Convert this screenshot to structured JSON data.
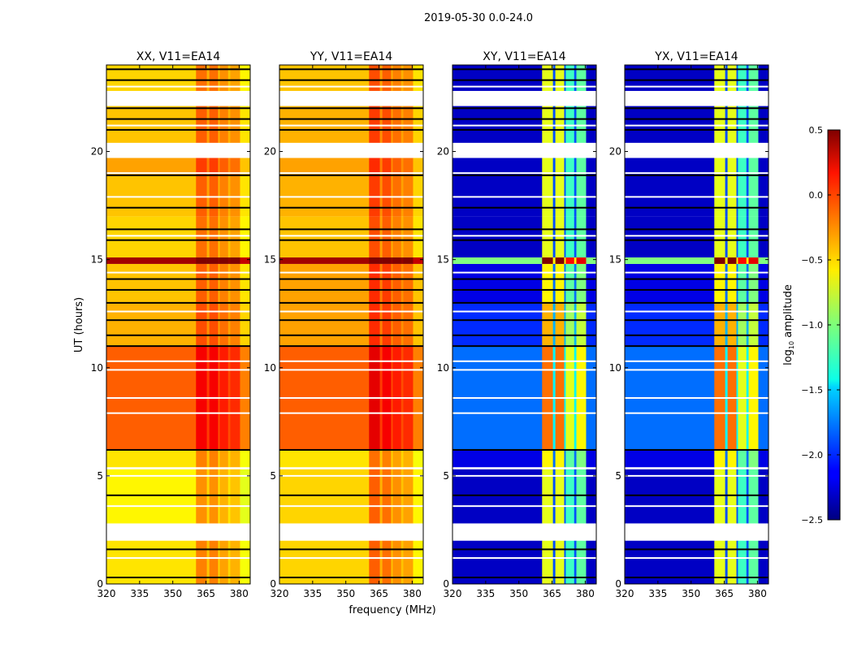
{
  "chart_data": {
    "type": "heatmap",
    "title": "2019-05-30 0.0-24.0",
    "xlabel": "frequency (MHz)",
    "ylabel": "UT (hours)",
    "xlim": [
      320,
      385
    ],
    "ylim": [
      0,
      24
    ],
    "xticks": [
      320,
      335,
      350,
      365,
      380
    ],
    "yticks": [
      0,
      5,
      10,
      15,
      20
    ],
    "colorbar": {
      "label": "log10 amplitude",
      "range": [
        -2.5,
        0.5
      ],
      "ticks": [
        "0.5",
        "0.0",
        "−0.5",
        "−1.0",
        "−1.5",
        "−2.0",
        "−2.5"
      ],
      "tick_values": [
        0.5,
        0.0,
        -0.5,
        -1.0,
        -1.5,
        -2.0,
        -2.5
      ],
      "colormap": "jet"
    },
    "time_segments_hours": [
      [
        0,
        2.0
      ],
      [
        2.8,
        5.3
      ],
      [
        5.4,
        6.2
      ],
      [
        6.2,
        11.0
      ],
      [
        11.0,
        13.0
      ],
      [
        13.0,
        14.8
      ],
      [
        14.8,
        15.1
      ],
      [
        15.1,
        17.0
      ],
      [
        17.0,
        18.9
      ],
      [
        18.9,
        19.7
      ],
      [
        20.4,
        22.1
      ],
      [
        22.8,
        24.0
      ]
    ],
    "frequency_bands_mhz": [
      [
        320,
        360.5
      ],
      [
        360.5,
        365.4
      ],
      [
        365.4,
        366.5
      ],
      [
        366.5,
        370.5
      ],
      [
        370.5,
        371.2
      ],
      [
        371.2,
        375
      ],
      [
        375,
        376
      ],
      [
        376,
        380.4
      ],
      [
        380.4,
        385
      ]
    ],
    "flagged_black_lines_hours": [
      0.3,
      1.6,
      4.1,
      6.2,
      11.0,
      11.5,
      12.2,
      13.0,
      13.6,
      14.1,
      15.9,
      16.4,
      17.4,
      18.9,
      21.0,
      21.5,
      22.0,
      23.3,
      23.8
    ],
    "flagged_white_lines_hours": [
      1.2,
      3.6,
      5.0,
      7.9,
      8.6,
      9.9,
      10.3,
      12.6,
      14.4,
      16.1,
      17.9,
      19.0,
      21.2,
      23.0
    ],
    "panels": [
      {
        "title": "XX, V11=EA14",
        "segment_levels": [
          -0.55,
          -0.6,
          -0.55,
          -0.15,
          -0.4,
          -0.45,
          0.4,
          -0.5,
          -0.45,
          -0.35,
          -0.45,
          -0.5
        ],
        "band_offsets": [
          0,
          0.3,
          0.1,
          0.3,
          0.05,
          0.2,
          0.05,
          0.15,
          -0.1
        ]
      },
      {
        "title": "YY, V11=EA14",
        "segment_levels": [
          -0.5,
          -0.5,
          -0.55,
          -0.15,
          -0.35,
          -0.35,
          0.4,
          -0.45,
          -0.4,
          -0.35,
          -0.4,
          -0.45
        ],
        "band_offsets": [
          0,
          0.35,
          0.1,
          0.3,
          0.05,
          0.2,
          0.05,
          0.15,
          -0.1
        ]
      },
      {
        "title": "XY, V11=EA14",
        "segment_levels": [
          -2.3,
          -2.3,
          -2.2,
          -1.8,
          -2.0,
          -2.2,
          -1.0,
          -2.3,
          -2.3,
          -2.3,
          -2.3,
          -2.3
        ],
        "band_offsets": [
          0,
          1.6,
          0.4,
          1.6,
          0.4,
          1.1,
          0.4,
          1.2,
          0
        ]
      },
      {
        "title": "YX, V11=EA14",
        "segment_levels": [
          -2.3,
          -2.3,
          -2.2,
          -1.8,
          -2.0,
          -2.2,
          -1.0,
          -2.3,
          -2.3,
          -2.3,
          -2.3,
          -2.3
        ],
        "band_offsets": [
          0,
          1.6,
          0.4,
          1.6,
          0.4,
          1.1,
          0.4,
          1.2,
          0
        ]
      }
    ]
  }
}
